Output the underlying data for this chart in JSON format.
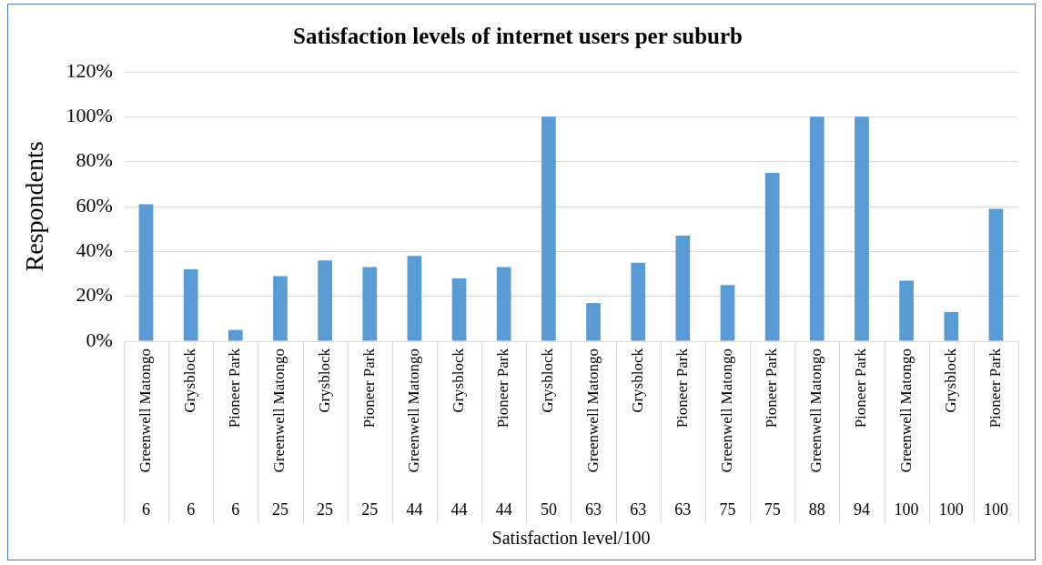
{
  "chart_data": {
    "type": "bar",
    "title": "Satisfaction levels of internet users per suburb",
    "xlabel": "Satisfaction level/100",
    "ylabel": "Respondents",
    "categories": [
      "Greenwell Matongo",
      "Grysblock",
      "Pioneer Park",
      "Greenwell Matongo",
      "Grysblock",
      "Pioneer Park",
      "Greenwell Matongo",
      "Grysblock",
      "Pioneer Park",
      "Grysblock",
      "Greenwell Matongo",
      "Grysblock",
      "Pioneer Park",
      "Greenwell Matongo",
      "Pioneer Park",
      "Greenwell Matongo",
      "Pioneer Park",
      "Greenwell Matongo",
      "Grysblock",
      "Pioneer Park"
    ],
    "values": [
      61,
      32,
      5,
      29,
      36,
      33,
      38,
      28,
      33,
      100,
      17,
      35,
      47,
      25,
      75,
      100,
      100,
      27,
      13,
      59
    ],
    "color": "#5b9bd5",
    "annotations": [
      "6",
      "6",
      "6",
      "25",
      "25",
      "25",
      "44",
      "44",
      "44",
      "50",
      "63",
      "63",
      "63",
      "75",
      "75",
      "88",
      "94",
      "100",
      "100",
      "100"
    ],
    "ylim": [
      0,
      120
    ],
    "yticks": [
      {
        "value": 0,
        "label": "0%"
      },
      {
        "value": 20,
        "label": "20%"
      },
      {
        "value": 40,
        "label": "40%"
      },
      {
        "value": 60,
        "label": "60%"
      },
      {
        "value": 80,
        "label": "80%"
      },
      {
        "value": 100,
        "label": "100%"
      },
      {
        "value": 120,
        "label": "120%"
      }
    ],
    "grid": "y",
    "legend": false
  }
}
